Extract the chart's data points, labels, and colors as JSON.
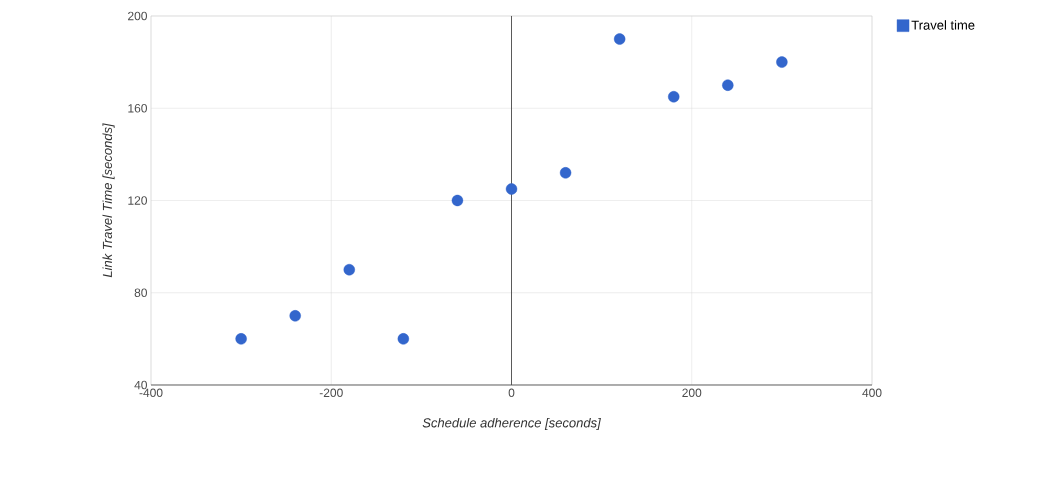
{
  "chart_data": {
    "type": "scatter",
    "xlabel": "Schedule adherence [seconds]",
    "ylabel": "Link Travel Time [seconds]",
    "x": [
      -300,
      -240,
      -180,
      -120,
      -60,
      0,
      60,
      120,
      180,
      240,
      300
    ],
    "series": [
      {
        "name": "Travel time",
        "color": "#3366cc",
        "values": [
          60,
          70,
          90,
          60,
          120,
          125,
          132,
          190,
          165,
          170,
          180
        ]
      }
    ],
    "xlim": [
      -400,
      400
    ],
    "ylim": [
      40,
      200
    ],
    "xticks": [
      -400,
      -200,
      0,
      200,
      400
    ],
    "yticks": [
      40,
      80,
      120,
      160,
      200
    ],
    "ref_lines": [
      {
        "axis": "x",
        "value": 0,
        "color": "#333333"
      }
    ],
    "grid": true,
    "legend": "top right"
  }
}
